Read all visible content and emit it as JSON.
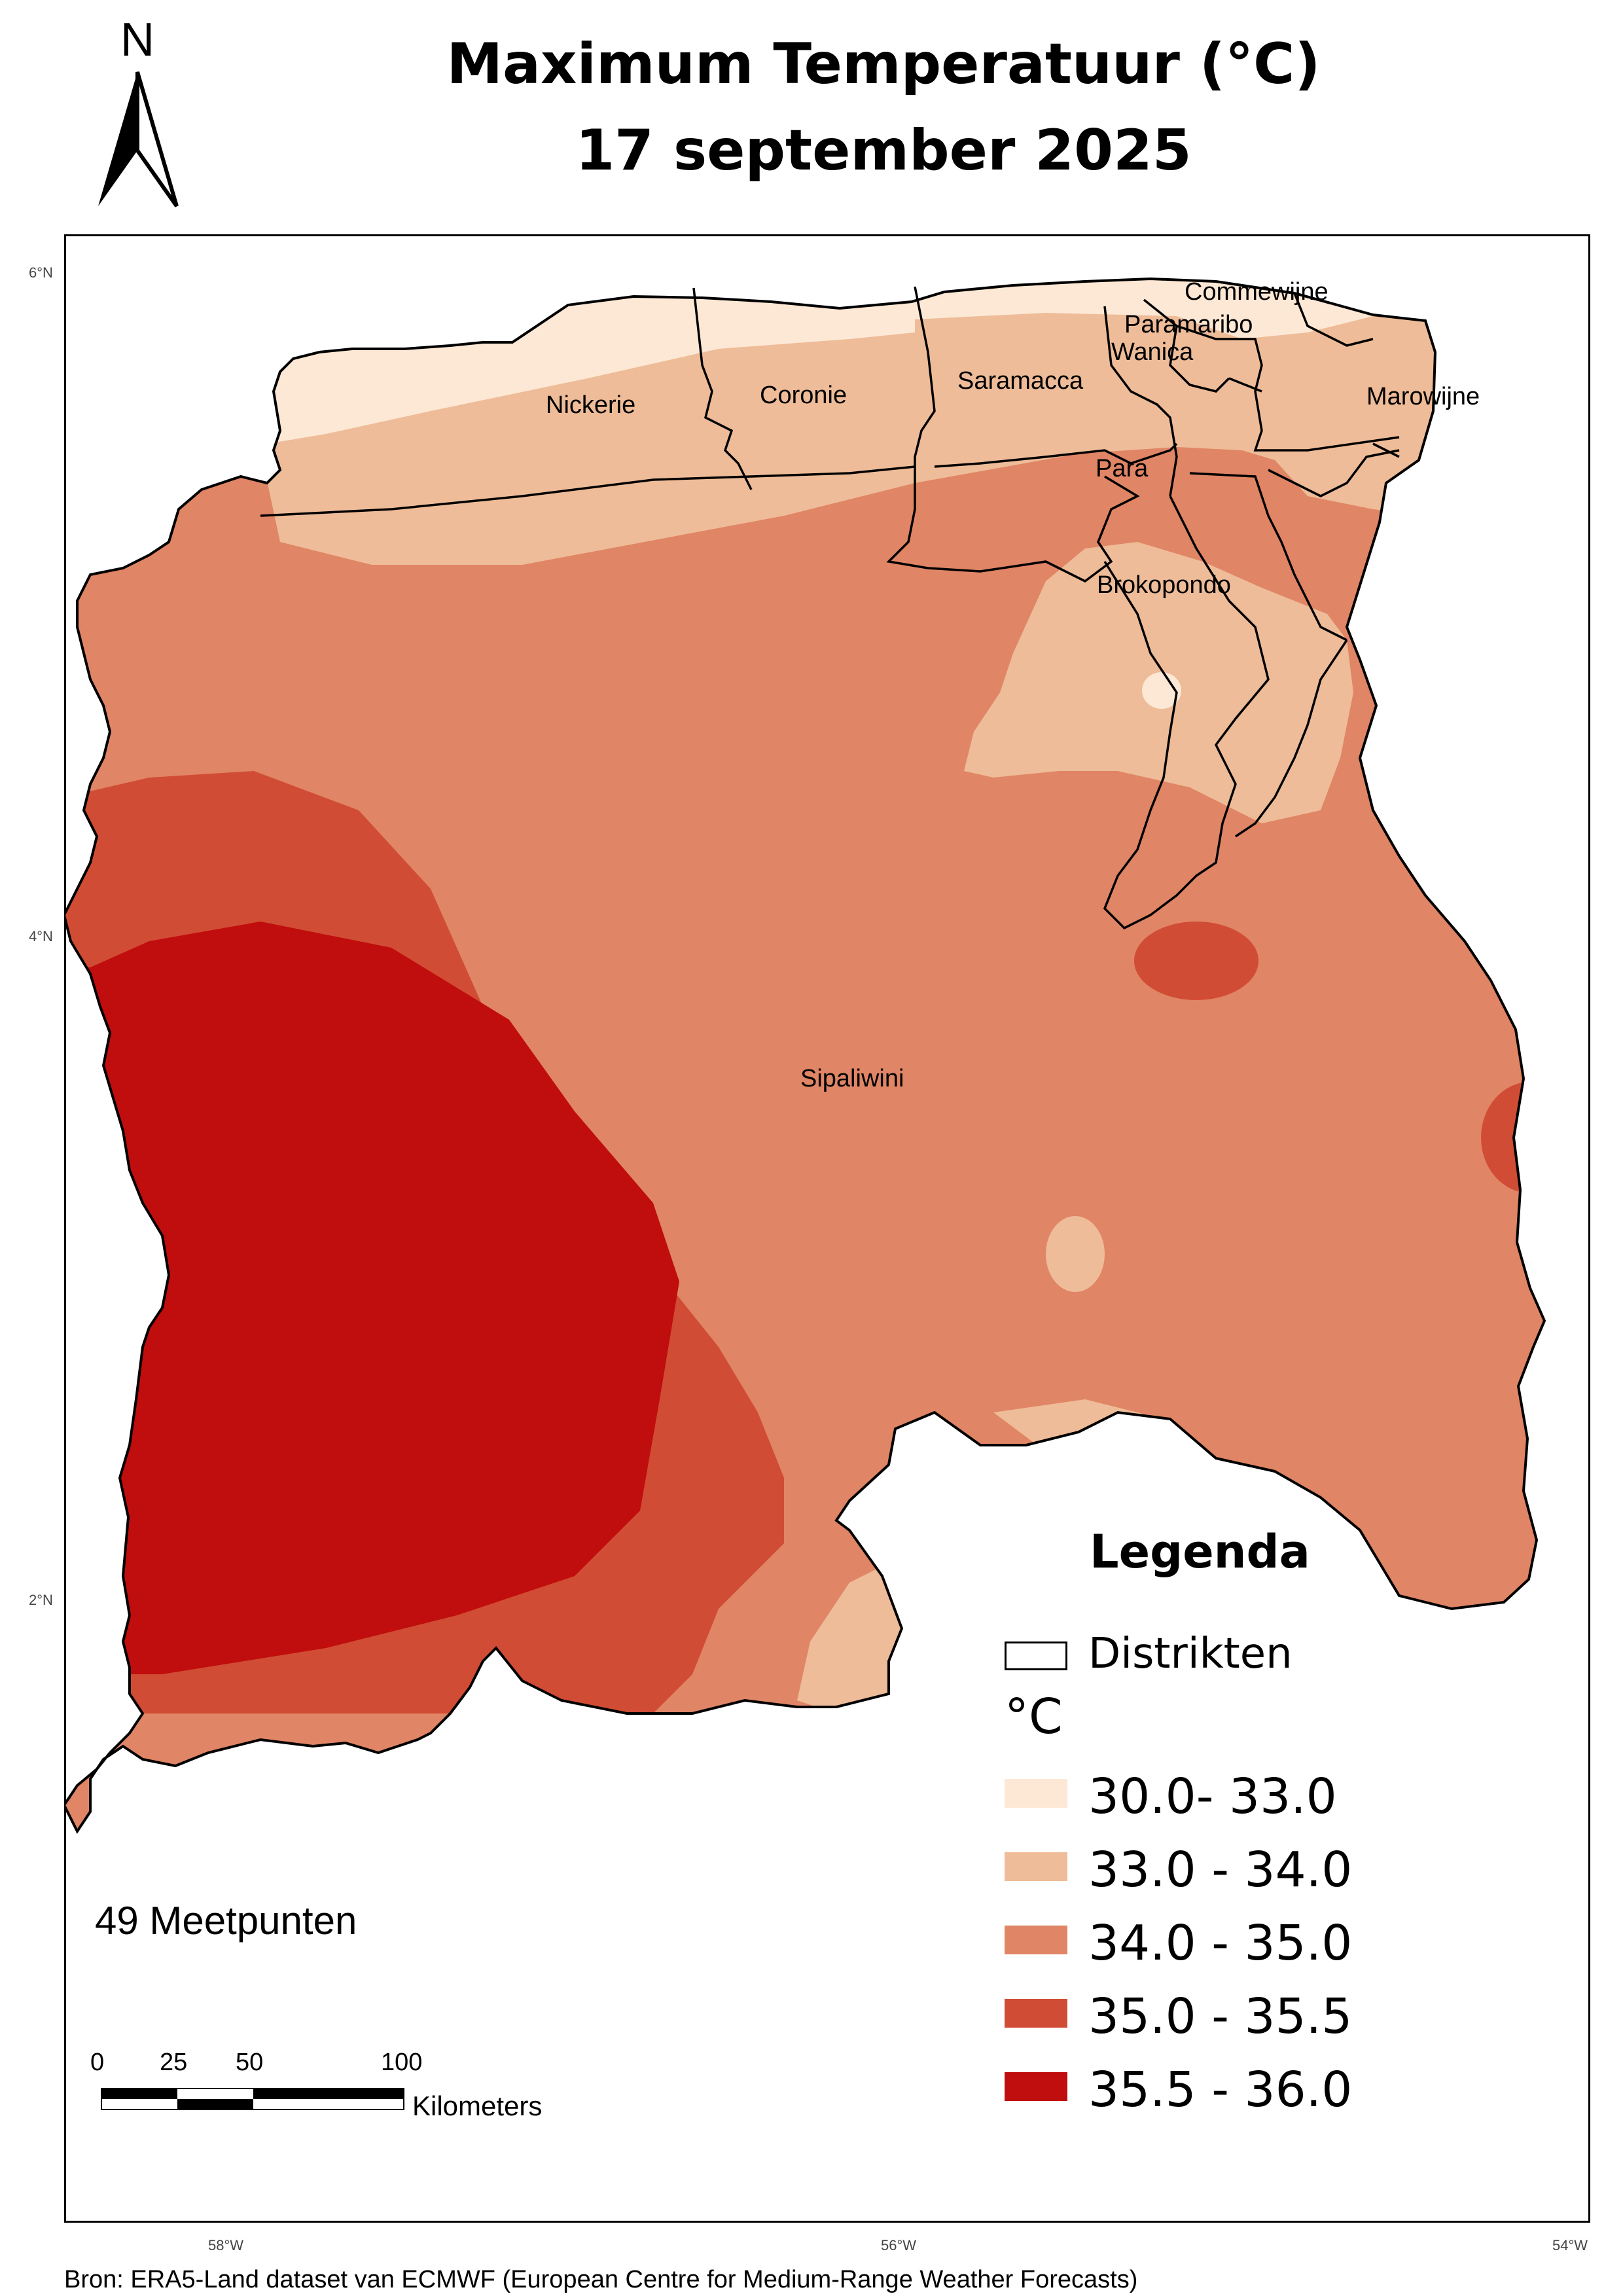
{
  "title": {
    "line1": "Maximum Temperatuur (°C)",
    "line2": "17 september 2025"
  },
  "north_arrow": {
    "letter": "N",
    "icon": "north-arrow-icon"
  },
  "axes": {
    "lat_labels": [
      "6°N",
      "4°N",
      "2°N"
    ],
    "lon_labels": [
      "58°W",
      "56°W",
      "54°W"
    ]
  },
  "districts": {
    "nickerie": "Nickerie",
    "coronie": "Coronie",
    "saramacca": "Saramacca",
    "commewijne": "Commewijne",
    "paramaribo": "Paramaribo",
    "wanica": "Wanica",
    "marowijne": "Marowijne",
    "para": "Para",
    "brokopondo": "Brokopondo",
    "sipaliwini": "Sipaliwini"
  },
  "legend": {
    "title": "Legenda",
    "districts_label": "Distrikten",
    "unit": "°C",
    "classes": [
      {
        "label": "30.0- 33.0",
        "color": "#fde8d5"
      },
      {
        "label": "33.0 - 34.0",
        "color": "#eebc98"
      },
      {
        "label": "34.0 - 35.0",
        "color": "#e08565"
      },
      {
        "label": "35.0 - 35.5",
        "color": "#d14c34"
      },
      {
        "label": "35.5 - 36.0",
        "color": "#c00d0d"
      }
    ]
  },
  "meetpunten": "49 Meetpunten",
  "scale_bar": {
    "ticks": [
      "0",
      "25",
      "50",
      "100"
    ],
    "unit": "Kilometers"
  },
  "source": "Bron: ERA5-Land dataset van ECMWF (European Centre for Medium-Range Weather Forecasts)",
  "colors": {
    "class_1": "#fde8d5",
    "class_2": "#eebc98",
    "class_3": "#e08565",
    "class_4": "#d14c34",
    "class_5": "#c00d0d",
    "boundary": "#000000"
  }
}
